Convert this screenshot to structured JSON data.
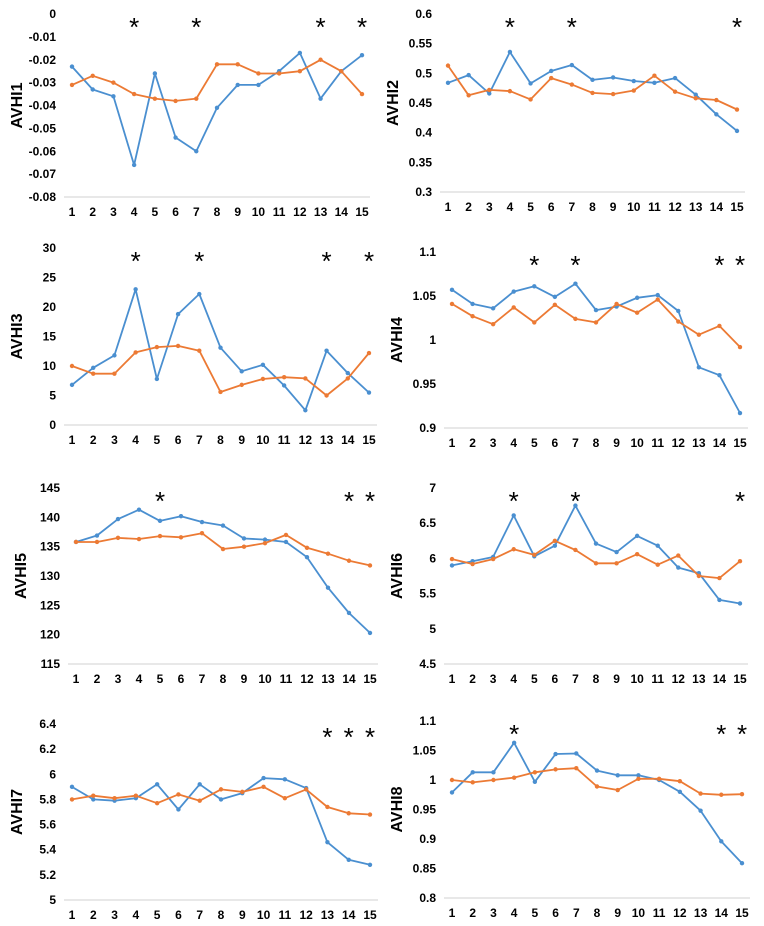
{
  "colors": {
    "series_a": "#4a8fd0",
    "series_b": "#ec7a34",
    "axis": "#d0d0d0",
    "text": "#000000"
  },
  "chart_data": [
    {
      "type": "line",
      "ylabel": "AVHI1",
      "categories": [
        "1",
        "2",
        "3",
        "4",
        "5",
        "6",
        "7",
        "8",
        "9",
        "10",
        "11",
        "12",
        "13",
        "14",
        "15"
      ],
      "ylim": [
        -0.08,
        0
      ],
      "yticks": [
        "0",
        "-0.01",
        "-0.02",
        "-0.03",
        "-0.04",
        "-0.05",
        "-0.06",
        "-0.07",
        "-0.08"
      ],
      "significant": [
        "4",
        "7",
        "13",
        "15"
      ],
      "series": [
        {
          "name": "blue",
          "values": [
            -0.023,
            -0.033,
            -0.036,
            -0.066,
            -0.026,
            -0.054,
            -0.06,
            -0.041,
            -0.031,
            -0.031,
            -0.025,
            -0.017,
            -0.037,
            -0.025,
            -0.018
          ]
        },
        {
          "name": "orange",
          "values": [
            -0.031,
            -0.027,
            -0.03,
            -0.035,
            -0.037,
            -0.038,
            -0.037,
            -0.022,
            -0.022,
            -0.026,
            -0.026,
            -0.025,
            -0.02,
            -0.025,
            -0.035
          ]
        }
      ]
    },
    {
      "type": "line",
      "ylabel": "AVHI2",
      "categories": [
        "1",
        "2",
        "3",
        "4",
        "5",
        "6",
        "7",
        "8",
        "9",
        "10",
        "11",
        "12",
        "13",
        "14",
        "15"
      ],
      "ylim": [
        0.3,
        0.6
      ],
      "yticks": [
        "0.6",
        "0.55",
        "0.5",
        "0.45",
        "0.4",
        "0.35",
        "0.3"
      ],
      "significant": [
        "4",
        "7",
        "15"
      ],
      "series": [
        {
          "name": "blue",
          "values": [
            0.484,
            0.497,
            0.466,
            0.536,
            0.483,
            0.504,
            0.514,
            0.489,
            0.493,
            0.487,
            0.484,
            0.492,
            0.464,
            0.431,
            0.403
          ]
        },
        {
          "name": "orange",
          "values": [
            0.513,
            0.463,
            0.472,
            0.47,
            0.456,
            0.492,
            0.481,
            0.467,
            0.465,
            0.471,
            0.496,
            0.469,
            0.458,
            0.455,
            0.439
          ]
        }
      ]
    },
    {
      "type": "line",
      "ylabel": "AVHI3",
      "categories": [
        "1",
        "2",
        "3",
        "4",
        "5",
        "6",
        "7",
        "8",
        "9",
        "10",
        "11",
        "12",
        "13",
        "14",
        "15"
      ],
      "ylim": [
        0,
        30
      ],
      "yticks": [
        "30",
        "25",
        "20",
        "15",
        "10",
        "5",
        "0"
      ],
      "significant": [
        "4",
        "7",
        "13",
        "15"
      ],
      "series": [
        {
          "name": "blue",
          "values": [
            6.8,
            9.7,
            11.8,
            23.0,
            7.8,
            18.8,
            22.2,
            13.1,
            9.1,
            10.2,
            6.7,
            2.5,
            12.6,
            8.8,
            5.5
          ]
        },
        {
          "name": "orange",
          "values": [
            10.0,
            8.7,
            8.7,
            12.3,
            13.2,
            13.4,
            12.6,
            5.6,
            6.8,
            7.8,
            8.1,
            7.9,
            5.0,
            7.9,
            12.2
          ]
        }
      ]
    },
    {
      "type": "line",
      "ylabel": "AVHI4",
      "categories": [
        "1",
        "2",
        "3",
        "4",
        "5",
        "6",
        "7",
        "8",
        "9",
        "10",
        "11",
        "12",
        "13",
        "14",
        "15"
      ],
      "ylim": [
        0.9,
        1.1
      ],
      "yticks": [
        "1.1",
        "1.05",
        "1",
        "0.95",
        "0.9"
      ],
      "significant": [
        "5",
        "7",
        "14",
        "15"
      ],
      "series": [
        {
          "name": "blue",
          "values": [
            1.057,
            1.041,
            1.036,
            1.055,
            1.061,
            1.049,
            1.064,
            1.034,
            1.038,
            1.048,
            1.051,
            1.033,
            0.969,
            0.96,
            0.917
          ]
        },
        {
          "name": "orange",
          "values": [
            1.041,
            1.027,
            1.018,
            1.037,
            1.02,
            1.04,
            1.024,
            1.02,
            1.041,
            1.031,
            1.046,
            1.021,
            1.006,
            1.016,
            0.992
          ]
        }
      ]
    },
    {
      "type": "line",
      "ylabel": "AVHI5",
      "categories": [
        "1",
        "2",
        "3",
        "4",
        "5",
        "6",
        "7",
        "8",
        "9",
        "10",
        "11",
        "12",
        "13",
        "14",
        "15"
      ],
      "ylim": [
        115,
        145
      ],
      "yticks": [
        "145",
        "140",
        "135",
        "130",
        "125",
        "120",
        "115"
      ],
      "significant": [
        "5",
        "14",
        "15"
      ],
      "series": [
        {
          "name": "blue",
          "values": [
            135.8,
            136.9,
            139.7,
            141.3,
            139.4,
            140.2,
            139.2,
            138.6,
            136.4,
            136.2,
            135.8,
            133.2,
            128.0,
            123.7,
            120.3
          ]
        },
        {
          "name": "orange",
          "values": [
            135.8,
            135.8,
            136.5,
            136.3,
            136.8,
            136.6,
            137.3,
            134.6,
            135.0,
            135.6,
            137.0,
            134.8,
            133.8,
            132.6,
            131.8
          ]
        }
      ]
    },
    {
      "type": "line",
      "ylabel": "AVHI6",
      "categories": [
        "1",
        "2",
        "3",
        "4",
        "5",
        "6",
        "7",
        "8",
        "9",
        "10",
        "11",
        "12",
        "13",
        "14",
        "15"
      ],
      "ylim": [
        4.5,
        7
      ],
      "yticks": [
        "7",
        "6.5",
        "6",
        "5.5",
        "5",
        "4.5"
      ],
      "significant": [
        "4",
        "7",
        "15"
      ],
      "series": [
        {
          "name": "blue",
          "values": [
            5.9,
            5.96,
            6.02,
            6.61,
            6.03,
            6.18,
            6.75,
            6.21,
            6.09,
            6.32,
            6.18,
            5.87,
            5.79,
            5.41,
            5.36
          ]
        },
        {
          "name": "orange",
          "values": [
            5.99,
            5.92,
            5.99,
            6.13,
            6.05,
            6.25,
            6.12,
            5.93,
            5.93,
            6.06,
            5.91,
            6.04,
            5.75,
            5.72,
            5.96
          ]
        }
      ]
    },
    {
      "type": "line",
      "ylabel": "AVHI7",
      "categories": [
        "1",
        "2",
        "3",
        "4",
        "5",
        "6",
        "7",
        "8",
        "9",
        "10",
        "11",
        "12",
        "13",
        "14",
        "15"
      ],
      "ylim": [
        5,
        6.4
      ],
      "yticks": [
        "6.4",
        "6.2",
        "6",
        "5.8",
        "5.6",
        "5.4",
        "5.2",
        "5"
      ],
      "significant": [
        "13",
        "14",
        "15"
      ],
      "series": [
        {
          "name": "blue",
          "values": [
            5.9,
            5.8,
            5.79,
            5.81,
            5.92,
            5.72,
            5.92,
            5.8,
            5.85,
            5.97,
            5.96,
            5.89,
            5.46,
            5.32,
            5.28
          ]
        },
        {
          "name": "orange",
          "values": [
            5.8,
            5.83,
            5.81,
            5.83,
            5.77,
            5.84,
            5.79,
            5.88,
            5.86,
            5.9,
            5.81,
            5.88,
            5.74,
            5.69,
            5.68
          ]
        }
      ]
    },
    {
      "type": "line",
      "ylabel": "AVHI8",
      "categories": [
        "1",
        "2",
        "3",
        "4",
        "5",
        "6",
        "7",
        "8",
        "9",
        "10",
        "11",
        "12",
        "13",
        "14",
        "15"
      ],
      "ylim": [
        0.8,
        1.1
      ],
      "yticks": [
        "1.1",
        "1.05",
        "1",
        "0.95",
        "0.9",
        "0.85",
        "0.8"
      ],
      "significant": [
        "4",
        "14",
        "15"
      ],
      "series": [
        {
          "name": "blue",
          "values": [
            0.979,
            1.013,
            1.013,
            1.063,
            0.997,
            1.044,
            1.045,
            1.016,
            1.008,
            1.008,
            1.0,
            0.98,
            0.948,
            0.896,
            0.859
          ]
        },
        {
          "name": "orange",
          "values": [
            1.0,
            0.996,
            1.0,
            1.004,
            1.013,
            1.018,
            1.02,
            0.989,
            0.983,
            1.002,
            1.002,
            0.998,
            0.977,
            0.975,
            0.976
          ]
        }
      ]
    }
  ]
}
